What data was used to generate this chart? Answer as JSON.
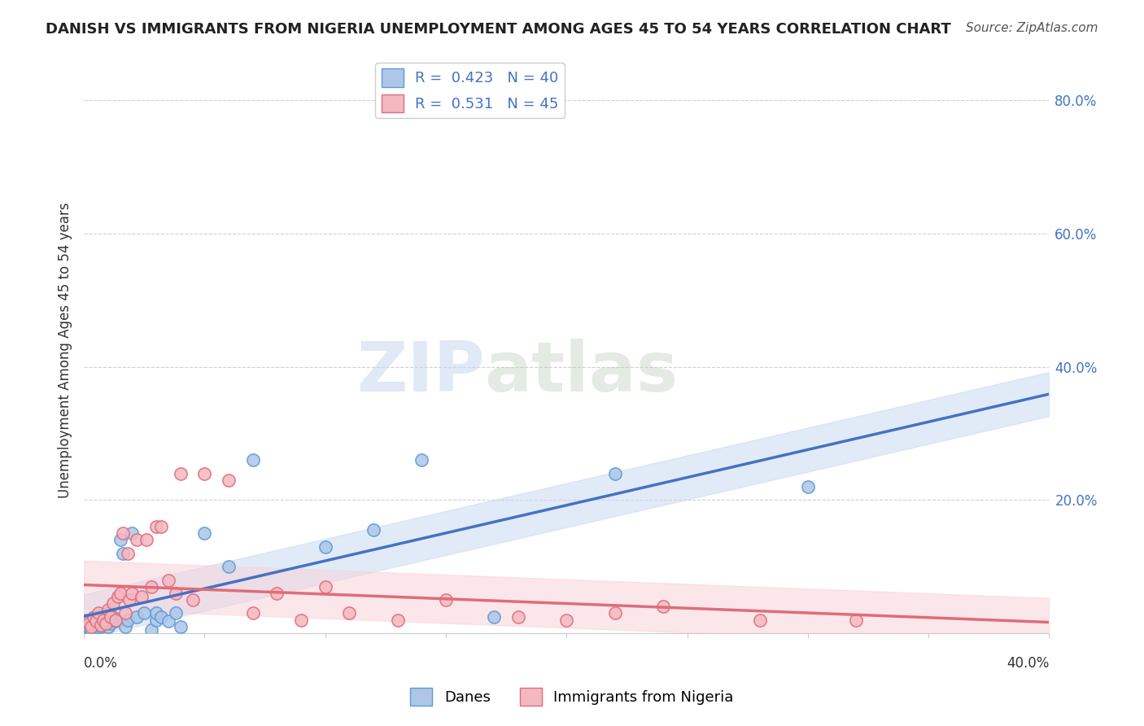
{
  "title": "DANISH VS IMMIGRANTS FROM NIGERIA UNEMPLOYMENT AMONG AGES 45 TO 54 YEARS CORRELATION CHART",
  "source": "Source: ZipAtlas.com",
  "ylabel": "Unemployment Among Ages 45 to 54 years",
  "xlim": [
    0.0,
    0.4
  ],
  "ylim": [
    0.0,
    0.85
  ],
  "yticks": [
    0.0,
    0.2,
    0.4,
    0.6,
    0.8
  ],
  "ytick_labels": [
    "",
    "20.0%",
    "40.0%",
    "60.0%",
    "80.0%"
  ],
  "danes_color": "#aec6e8",
  "danes_edge_color": "#5b9bd5",
  "nigeria_color": "#f4b8c1",
  "nigeria_edge_color": "#e06c7a",
  "danes_line_color": "#4472c4",
  "nigeria_line_color": "#e06c7a",
  "danes_ci_color": "#c5d9f0",
  "nigeria_ci_color": "#f9d0d6",
  "legend_R_danes": "0.423",
  "legend_N_danes": "40",
  "legend_R_nigeria": "0.531",
  "legend_N_nigeria": "45",
  "danes_x": [
    0.001,
    0.002,
    0.003,
    0.003,
    0.004,
    0.005,
    0.005,
    0.006,
    0.006,
    0.007,
    0.008,
    0.009,
    0.01,
    0.01,
    0.011,
    0.012,
    0.013,
    0.015,
    0.016,
    0.017,
    0.018,
    0.02,
    0.022,
    0.025,
    0.028,
    0.03,
    0.03,
    0.032,
    0.035,
    0.038,
    0.04,
    0.05,
    0.06,
    0.07,
    0.1,
    0.12,
    0.14,
    0.17,
    0.22,
    0.3
  ],
  "danes_y": [
    0.01,
    0.008,
    0.015,
    0.005,
    0.02,
    0.012,
    0.018,
    0.008,
    0.025,
    0.01,
    0.015,
    0.02,
    0.01,
    0.03,
    0.015,
    0.025,
    0.018,
    0.14,
    0.12,
    0.01,
    0.02,
    0.15,
    0.025,
    0.03,
    0.005,
    0.02,
    0.03,
    0.025,
    0.018,
    0.03,
    0.01,
    0.15,
    0.1,
    0.26,
    0.13,
    0.155,
    0.26,
    0.025,
    0.24,
    0.22
  ],
  "nigeria_x": [
    0.001,
    0.002,
    0.003,
    0.004,
    0.005,
    0.006,
    0.007,
    0.008,
    0.009,
    0.01,
    0.011,
    0.012,
    0.013,
    0.014,
    0.015,
    0.016,
    0.017,
    0.018,
    0.019,
    0.02,
    0.022,
    0.024,
    0.026,
    0.028,
    0.03,
    0.032,
    0.035,
    0.038,
    0.04,
    0.045,
    0.05,
    0.06,
    0.07,
    0.08,
    0.09,
    0.1,
    0.11,
    0.13,
    0.15,
    0.18,
    0.2,
    0.22,
    0.24,
    0.28,
    0.32
  ],
  "nigeria_y": [
    0.02,
    0.015,
    0.01,
    0.025,
    0.018,
    0.03,
    0.012,
    0.02,
    0.015,
    0.035,
    0.025,
    0.045,
    0.02,
    0.055,
    0.06,
    0.15,
    0.03,
    0.12,
    0.05,
    0.06,
    0.14,
    0.055,
    0.14,
    0.07,
    0.16,
    0.16,
    0.08,
    0.06,
    0.24,
    0.05,
    0.24,
    0.23,
    0.03,
    0.06,
    0.02,
    0.07,
    0.03,
    0.02,
    0.05,
    0.025,
    0.02,
    0.03,
    0.04,
    0.02,
    0.02
  ],
  "watermark_zip": "ZIP",
  "watermark_atlas": "atlas",
  "background_color": "#ffffff",
  "grid_color": "#d0d0d0"
}
